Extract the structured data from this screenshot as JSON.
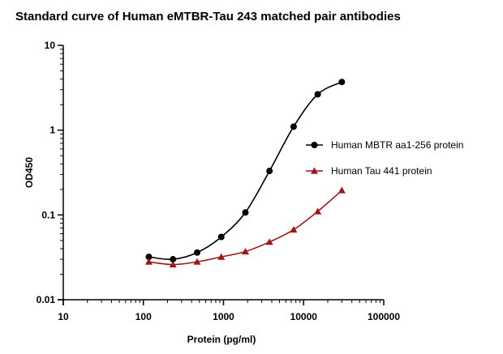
{
  "chart_data": {
    "type": "line",
    "title": "Standard curve of Human eMTBR-Tau 243 matched pair antibodies",
    "xlabel": "Protein (pg/ml)",
    "ylabel": "OD450",
    "x_scale": "log",
    "y_scale": "log",
    "xlim": [
      10,
      100000
    ],
    "ylim": [
      0.01,
      10
    ],
    "x_ticks": [
      10,
      100,
      1000,
      10000,
      100000
    ],
    "x_tick_labels": [
      "10",
      "100",
      "1000",
      "10000",
      "100000"
    ],
    "y_ticks": [
      0.01,
      0.1,
      1,
      10
    ],
    "y_tick_labels": [
      "0.01",
      "0.1",
      "1",
      "10"
    ],
    "grid": false,
    "legend_position": "right",
    "series": [
      {
        "name": "Human MBTR aa1-256  protein",
        "color": "#000000",
        "marker": "circle",
        "x": [
          117,
          234,
          469,
          938,
          1875,
          3750,
          7500,
          15000,
          30000
        ],
        "y": [
          0.032,
          0.03,
          0.036,
          0.055,
          0.107,
          0.33,
          1.1,
          2.65,
          3.7
        ]
      },
      {
        "name": "Human Tau 441  protein",
        "color": "#a31515",
        "marker": "triangle",
        "x": [
          117,
          234,
          469,
          938,
          1875,
          3750,
          7500,
          15000,
          30000
        ],
        "y": [
          0.028,
          0.026,
          0.028,
          0.032,
          0.037,
          0.048,
          0.067,
          0.11,
          0.195
        ]
      }
    ]
  }
}
